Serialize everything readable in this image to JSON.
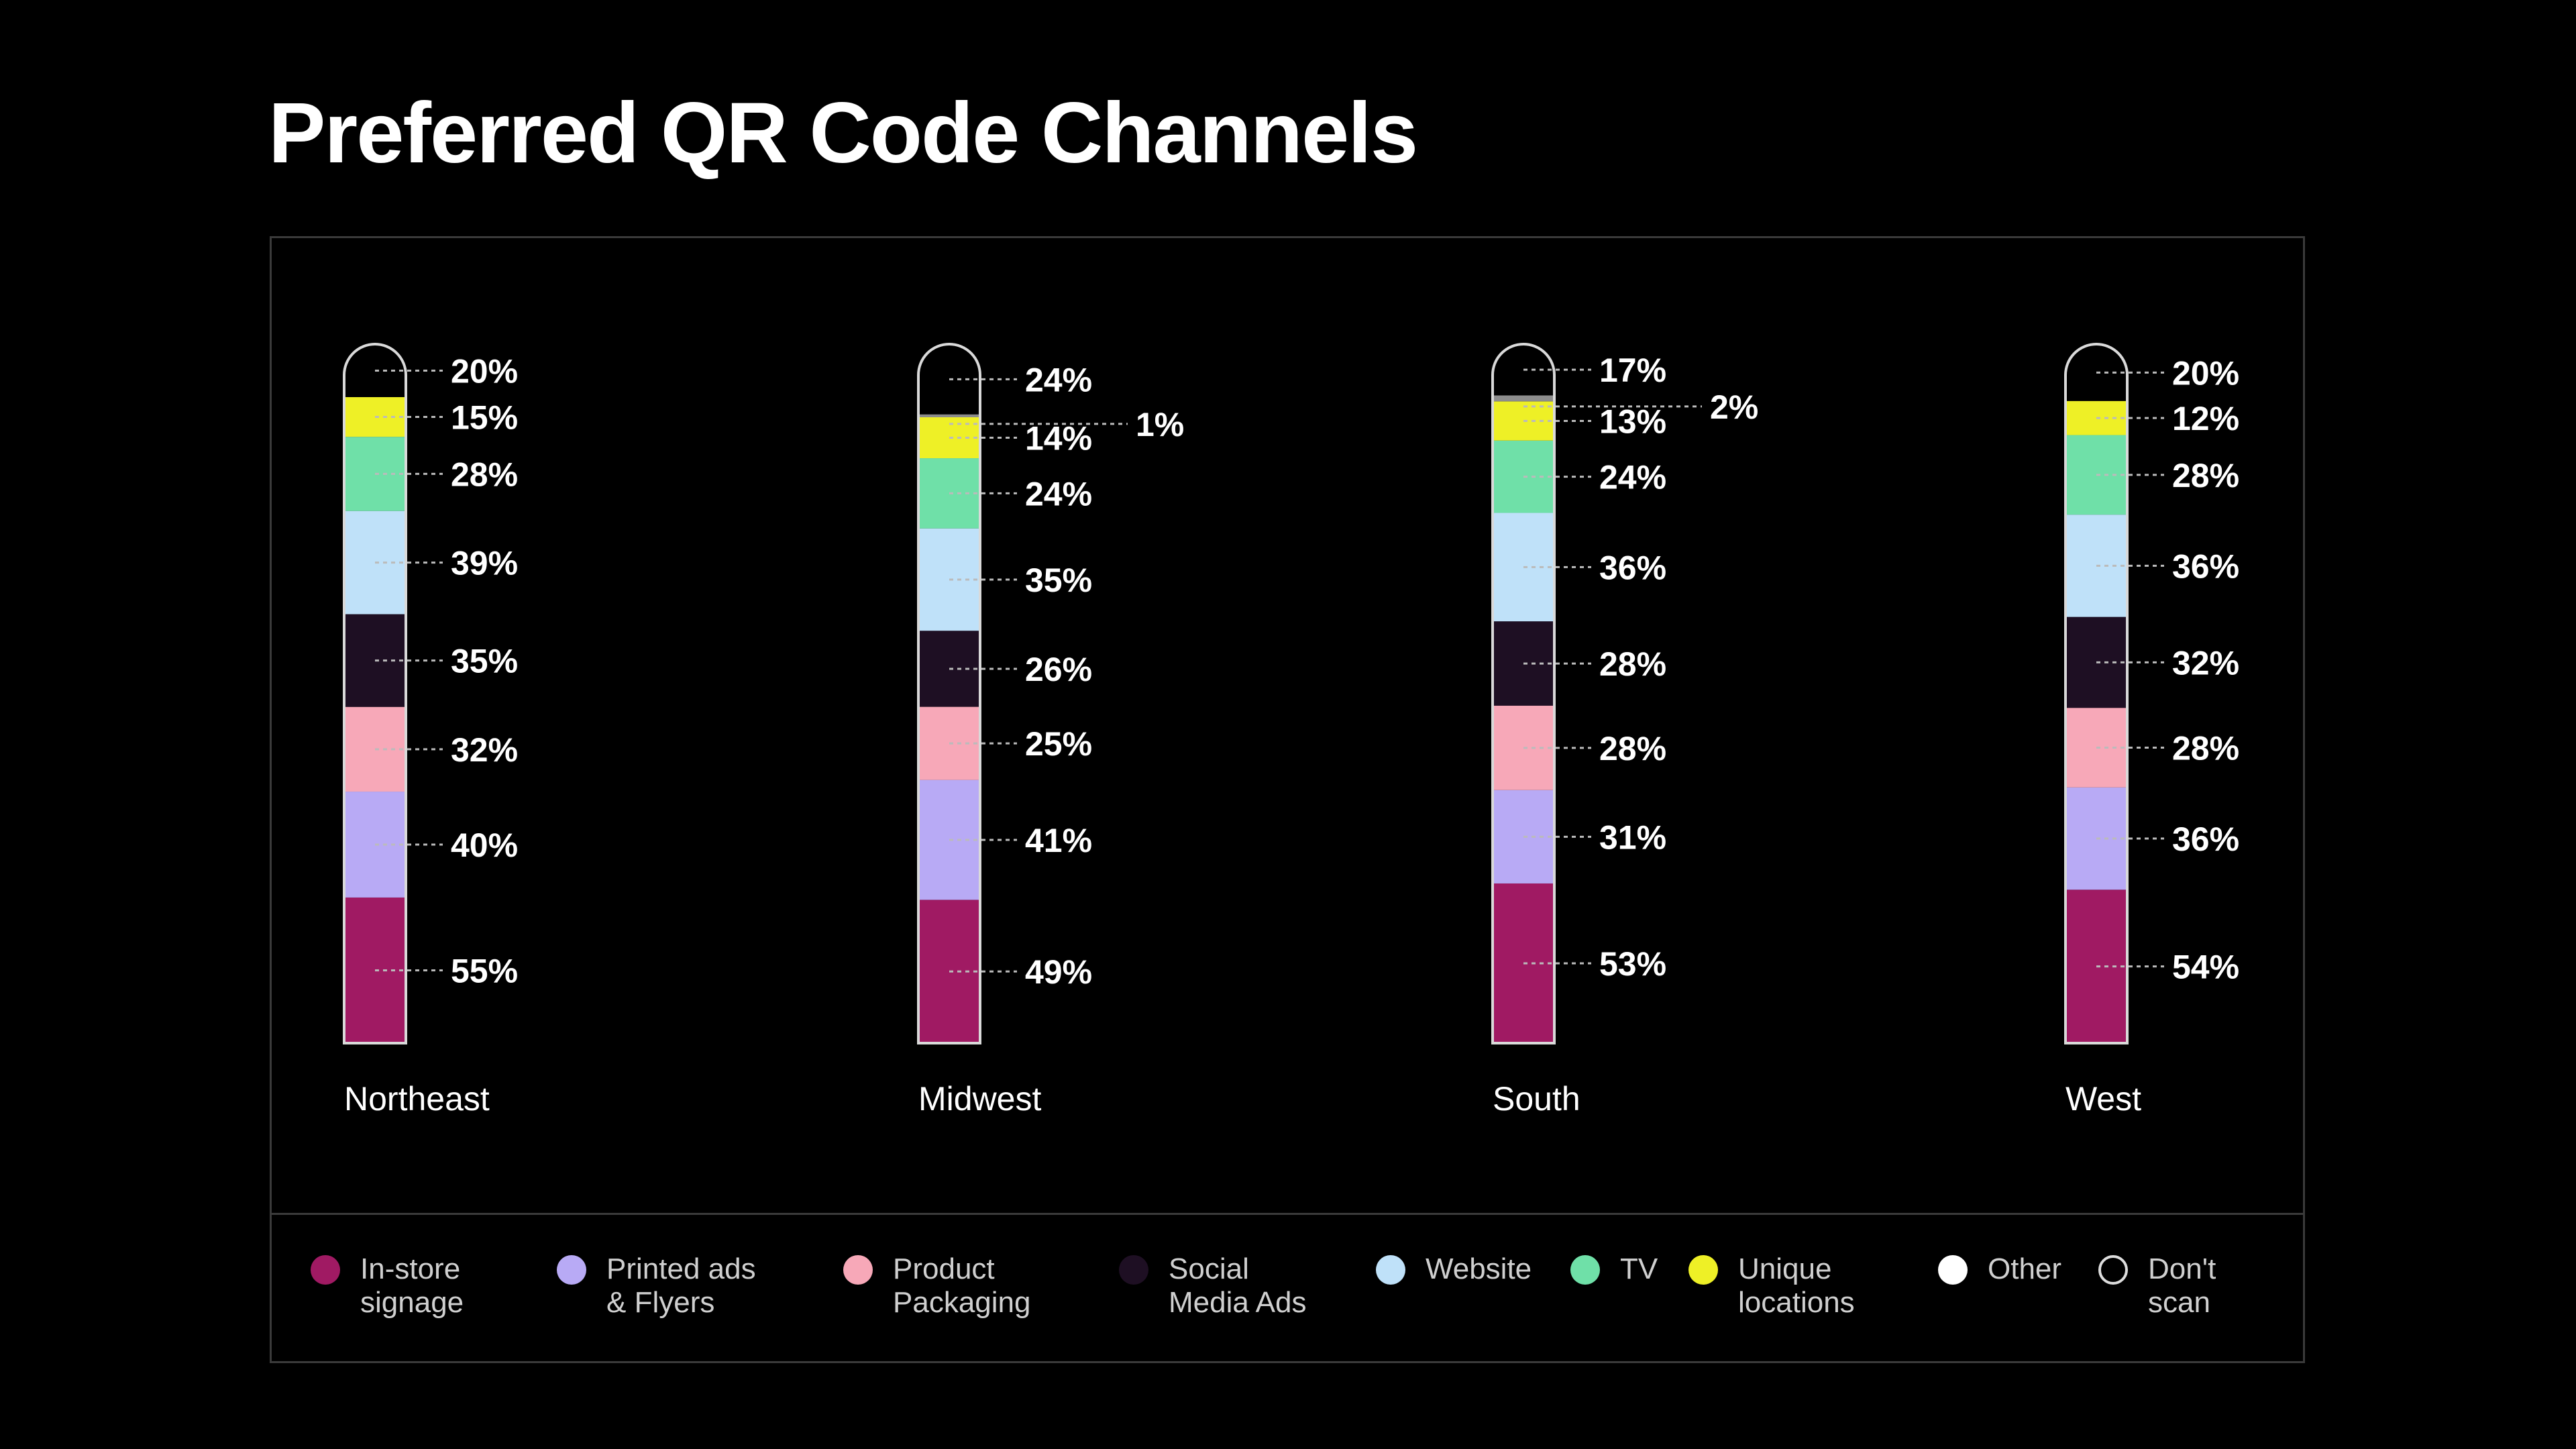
{
  "page": {
    "title": "Preferred QR Code Channels"
  },
  "chart_data": {
    "type": "bar",
    "stacked": true,
    "categories": [
      "Northeast",
      "Midwest",
      "South",
      "West"
    ],
    "series": [
      {
        "name": "In-store signage",
        "color": "#a01a63",
        "values": [
          55,
          49,
          53,
          54
        ]
      },
      {
        "name": "Printed ads & Flyers",
        "color": "#b8aaf5",
        "values": [
          40,
          41,
          31,
          36
        ]
      },
      {
        "name": "Product Packaging",
        "color": "#f7a8b8",
        "values": [
          32,
          25,
          28,
          28
        ]
      },
      {
        "name": "Social Media Ads",
        "color": "#1e0f23",
        "values": [
          35,
          26,
          28,
          32
        ]
      },
      {
        "name": "Website",
        "color": "#bfe1f9",
        "values": [
          39,
          35,
          36,
          36
        ]
      },
      {
        "name": "TV",
        "color": "#6fe0a8",
        "values": [
          28,
          24,
          24,
          28
        ]
      },
      {
        "name": "Unique locations",
        "color": "#eef026",
        "values": [
          15,
          14,
          13,
          12
        ]
      },
      {
        "name": "Other",
        "color": "#8c8c8c",
        "values": [
          0,
          1,
          2,
          0
        ]
      },
      {
        "name": "Don't scan",
        "color": "#000000",
        "values": [
          20,
          24,
          17,
          20
        ]
      }
    ],
    "data_labels": [
      [
        "55%",
        "40%",
        "32%",
        "35%",
        "39%",
        "28%",
        "15%",
        "",
        "20%"
      ],
      [
        "49%",
        "41%",
        "25%",
        "26%",
        "35%",
        "24%",
        "14%",
        "1%",
        "24%"
      ],
      [
        "53%",
        "31%",
        "28%",
        "28%",
        "36%",
        "24%",
        "13%",
        "2%",
        "17%"
      ],
      [
        "54%",
        "36%",
        "28%",
        "32%",
        "36%",
        "28%",
        "12%",
        "",
        "20%"
      ]
    ],
    "grid": false,
    "legend_position": "bottom"
  },
  "legend": {
    "items": [
      {
        "label": "In-store\nsignage",
        "color": "#a01a63",
        "outline": false
      },
      {
        "label": "Printed ads\n& Flyers",
        "color": "#b8aaf5",
        "outline": false
      },
      {
        "label": "Product\nPackaging",
        "color": "#f7a8b8",
        "outline": false
      },
      {
        "label": "Social\nMedia Ads",
        "color": "#1e0f23",
        "outline": false
      },
      {
        "label": "Website",
        "color": "#bfe1f9",
        "outline": false
      },
      {
        "label": "TV",
        "color": "#6fe0a8",
        "outline": false
      },
      {
        "label": "Unique\nlocations",
        "color": "#eef026",
        "outline": false
      },
      {
        "label": "Other",
        "color": "#ffffff",
        "outline": false
      },
      {
        "label": "Don't\nscan",
        "color": "#000000",
        "outline": true
      }
    ]
  }
}
